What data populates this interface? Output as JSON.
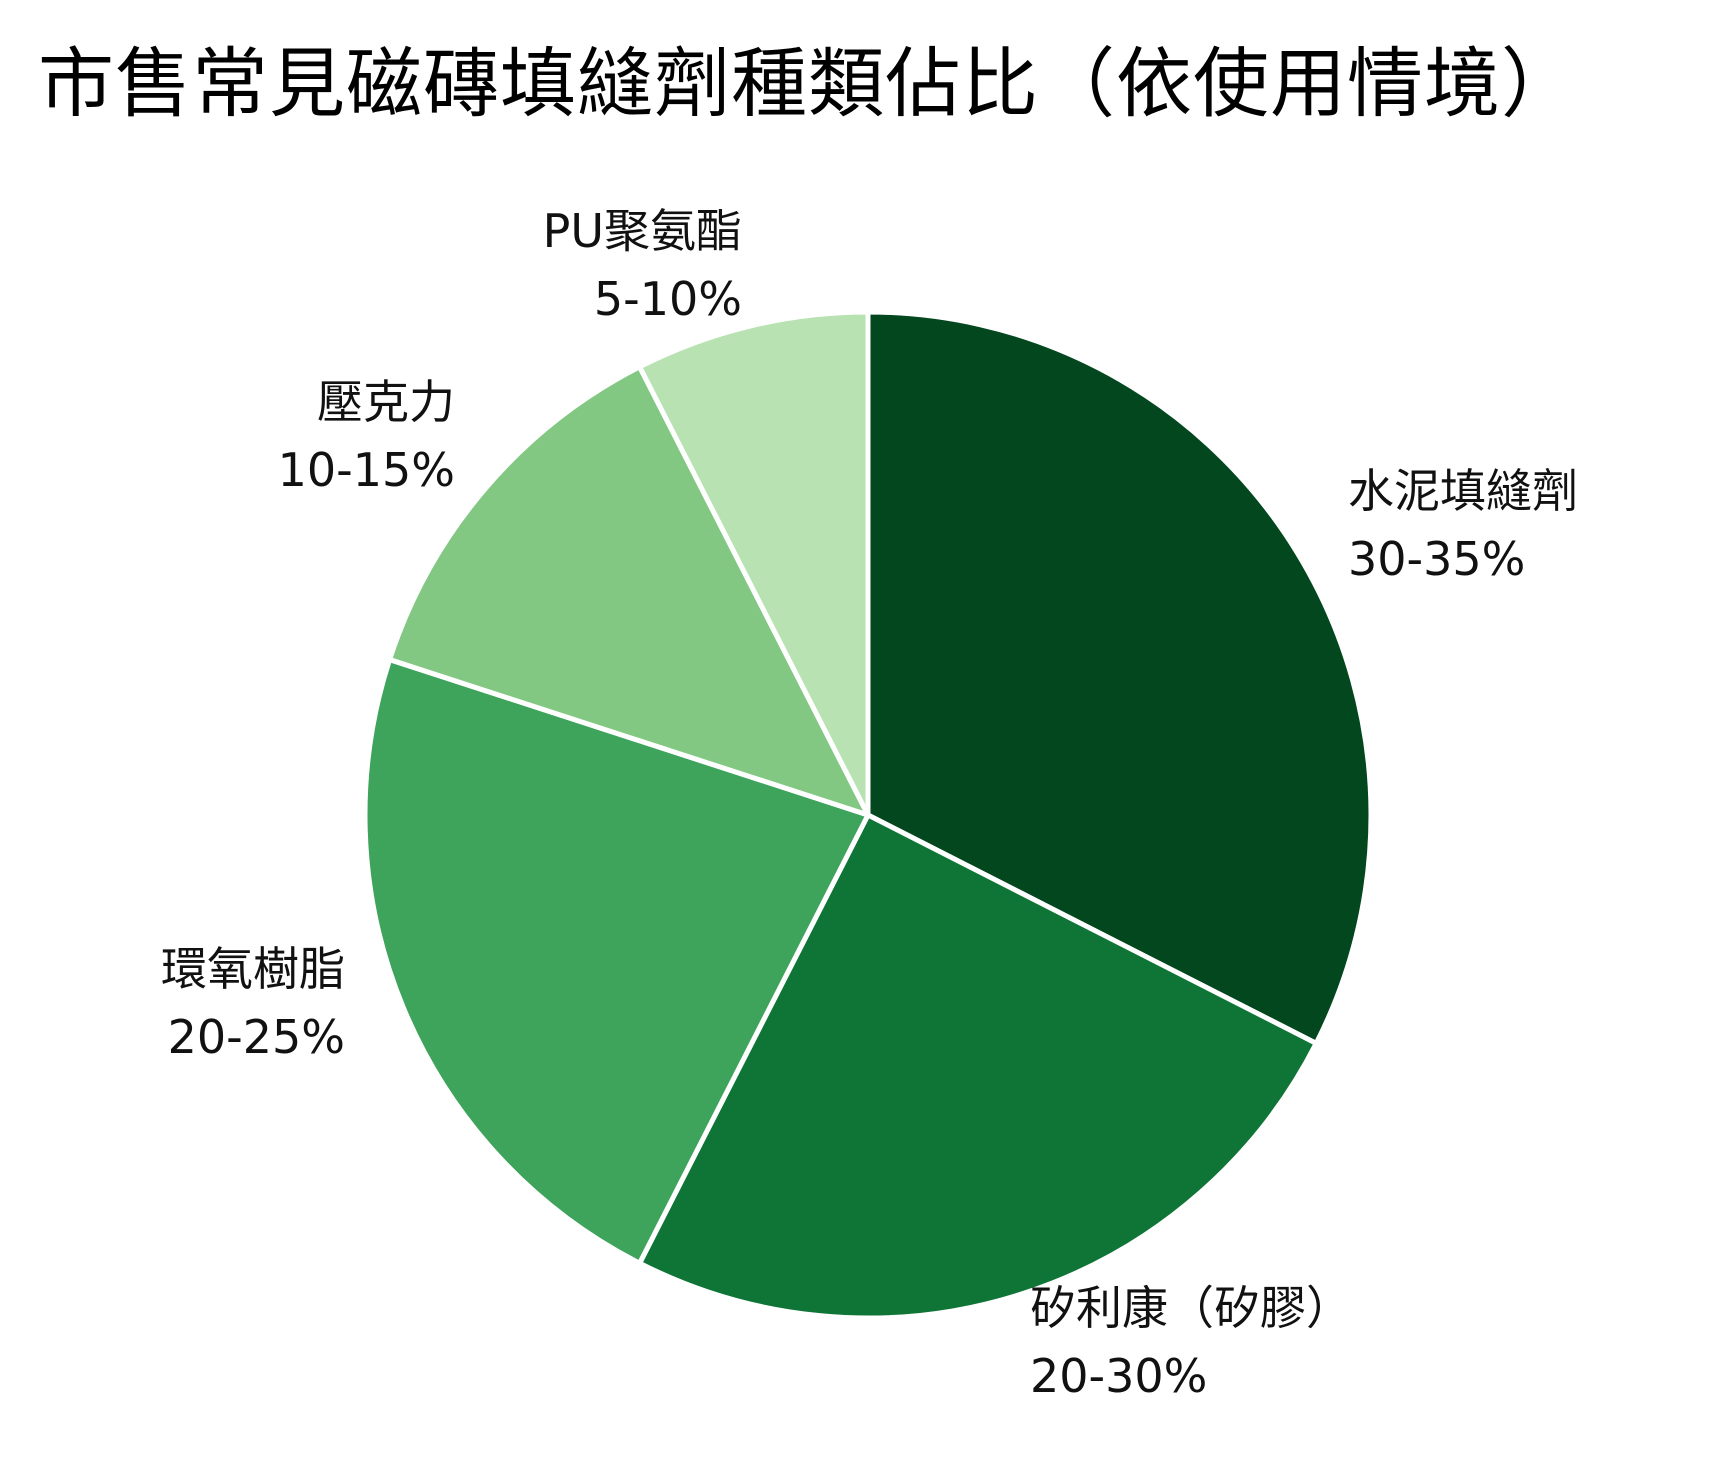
{
  "chart_data": {
    "type": "pie",
    "title": "市售常見磁磚填縫劑種類佔比（依使用情境）",
    "slices": [
      {
        "name": "水泥填縫劑",
        "range": "30-35%",
        "value": 32.5,
        "color": "#02471e"
      },
      {
        "name": "矽利康（矽膠）",
        "range": "20-30%",
        "value": 25,
        "color": "#0f7536"
      },
      {
        "name": "環氧樹脂",
        "range": "20-25%",
        "value": 22.5,
        "color": "#3ea35b"
      },
      {
        "name": "壓克力",
        "range": "10-15%",
        "value": 12.5,
        "color": "#82c883"
      },
      {
        "name": "PU聚氨酯",
        "range": "5-10%",
        "value": 7.5,
        "color": "#b8e2b2"
      }
    ],
    "start_angle": "12 o'clock",
    "direction": "clockwise",
    "legend": "none"
  }
}
